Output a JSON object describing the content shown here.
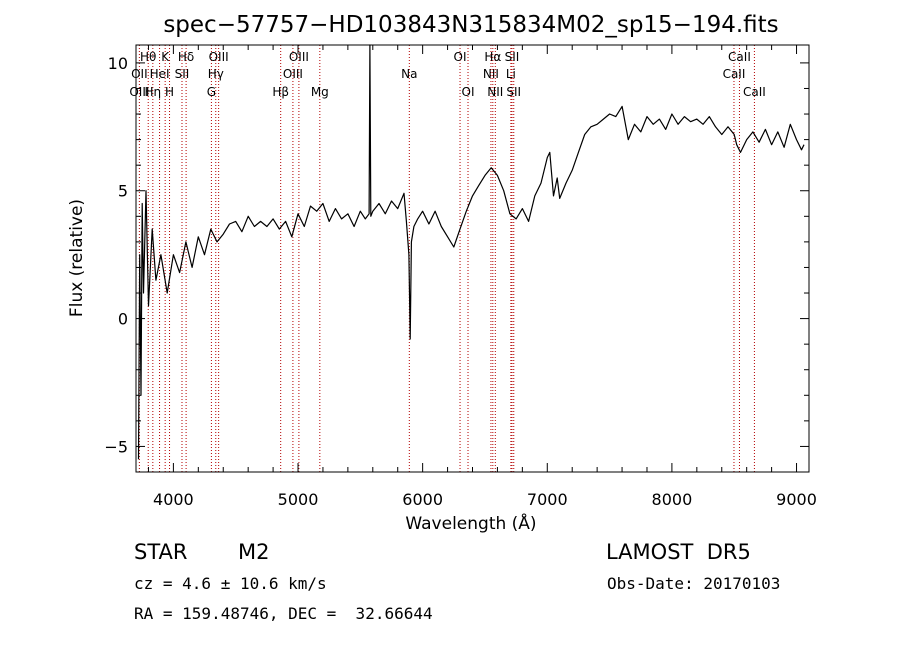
{
  "chart_data": {
    "type": "line",
    "title": "spec−57757−HD103843N315834M02_sp15−194.fits",
    "xlabel": "Wavelength (Å)",
    "ylabel": "Flux (relative)",
    "xlim": [
      3700,
      9100
    ],
    "ylim": [
      -6.0,
      10.7
    ],
    "x_ticks": [
      4000,
      5000,
      6000,
      7000,
      8000,
      9000
    ],
    "y_ticks": [
      -5,
      0,
      5,
      10
    ],
    "x_tick_labels": [
      "4000",
      "5000",
      "6000",
      "7000",
      "8000",
      "9000"
    ],
    "y_tick_labels": [
      "−5",
      "0",
      "5",
      "10"
    ],
    "grid": false,
    "series": [
      {
        "x": [
          3720,
          3730,
          3740,
          3750,
          3760,
          3780,
          3800,
          3830,
          3860,
          3900,
          3950,
          4000,
          4050,
          4100,
          4150,
          4200,
          4250,
          4300,
          4350,
          4400,
          4450,
          4500,
          4550,
          4600,
          4650,
          4700,
          4750,
          4800,
          4850,
          4900,
          4950,
          5000,
          5050,
          5100,
          5150,
          5200,
          5250,
          5300,
          5350,
          5400,
          5450,
          5500,
          5540,
          5570,
          5577,
          5584,
          5600,
          5650,
          5700,
          5750,
          5800,
          5850,
          5870,
          5890,
          5900,
          5910,
          5930,
          5960,
          6000,
          6050,
          6100,
          6150,
          6200,
          6250,
          6300,
          6350,
          6400,
          6450,
          6500,
          6550,
          6600,
          6650,
          6700,
          6750,
          6800,
          6850,
          6900,
          6950,
          7000,
          7020,
          7050,
          7080,
          7100,
          7150,
          7200,
          7250,
          7300,
          7350,
          7400,
          7450,
          7500,
          7550,
          7600,
          7650,
          7700,
          7750,
          7800,
          7850,
          7900,
          7950,
          8000,
          8050,
          8100,
          8150,
          8200,
          8250,
          8300,
          8350,
          8400,
          8450,
          8500,
          8520,
          8550,
          8600,
          8650,
          8700,
          8750,
          8800,
          8850,
          8900,
          8950,
          9000,
          9040,
          9060
        ],
        "y": [
          -5.5,
          2.5,
          -3,
          4.5,
          1,
          5,
          0.5,
          3.5,
          1.5,
          2.5,
          1,
          2.5,
          1.8,
          3,
          2,
          3.2,
          2.5,
          3.5,
          3,
          3.3,
          3.7,
          3.8,
          3.4,
          4,
          3.6,
          3.8,
          3.6,
          3.9,
          3.5,
          3.8,
          3.2,
          4.1,
          3.6,
          4.4,
          4.2,
          4.5,
          3.8,
          4.3,
          3.9,
          4.1,
          3.6,
          4.2,
          3.9,
          4.1,
          10.7,
          4.0,
          4.2,
          4.5,
          4.1,
          4.6,
          4.3,
          4.9,
          3.8,
          2.5,
          -0.8,
          3.0,
          3.6,
          3.9,
          4.2,
          3.7,
          4.2,
          3.6,
          3.2,
          2.8,
          3.5,
          4.2,
          4.8,
          5.2,
          5.6,
          5.9,
          5.6,
          5.0,
          4.1,
          3.9,
          4.3,
          3.8,
          4.8,
          5.3,
          6.3,
          6.5,
          4.8,
          5.5,
          4.7,
          5.3,
          5.8,
          6.5,
          7.2,
          7.5,
          7.6,
          7.8,
          8.0,
          7.9,
          8.3,
          7.0,
          7.6,
          7.3,
          7.9,
          7.6,
          7.8,
          7.4,
          8.0,
          7.6,
          7.9,
          7.7,
          7.8,
          7.6,
          7.9,
          7.5,
          7.2,
          7.5,
          7.2,
          6.8,
          6.5,
          7.0,
          7.3,
          6.9,
          7.4,
          6.8,
          7.3,
          6.7,
          7.6,
          7.0,
          6.6,
          6.8
        ]
      }
    ],
    "annotations": [
      {
        "text": "Hθ",
        "x": 3798
      },
      {
        "text": "K",
        "x": 3934
      },
      {
        "text": "Hδ",
        "x": 4102
      },
      {
        "text": "OIII",
        "x": 4363
      },
      {
        "text": "OIII",
        "x": 5007
      },
      {
        "text": "OI",
        "x": 6300
      },
      {
        "text": "Hα",
        "x": 6563
      },
      {
        "text": "SII",
        "x": 6717
      },
      {
        "text": "CaII",
        "x": 8542
      },
      {
        "text": "OII",
        "x": 3727
      },
      {
        "text": "HeI",
        "x": 3889
      },
      {
        "text": "SII",
        "x": 4069
      },
      {
        "text": "Hγ",
        "x": 4340
      },
      {
        "text": "OIII",
        "x": 4959
      },
      {
        "text": "Na",
        "x": 5893
      },
      {
        "text": "NII",
        "x": 6548
      },
      {
        "text": "Li",
        "x": 6708
      },
      {
        "text": "CaII",
        "x": 8498
      },
      {
        "text": "OIII",
        "x": 3727
      },
      {
        "text": "Hη",
        "x": 3835
      },
      {
        "text": "H",
        "x": 3969
      },
      {
        "text": "G",
        "x": 4305
      },
      {
        "text": "Hβ",
        "x": 4861
      },
      {
        "text": "Mg",
        "x": 5175
      },
      {
        "text": "OI",
        "x": 6364
      },
      {
        "text": "NII",
        "x": 6583
      },
      {
        "text": "SII",
        "x": 6731
      },
      {
        "text": "CaII",
        "x": 8662
      }
    ],
    "line_markers": [
      3727,
      3798,
      3835,
      3889,
      3934,
      3969,
      4069,
      4102,
      4305,
      4340,
      4363,
      4861,
      4959,
      5007,
      5175,
      5893,
      6300,
      6364,
      6548,
      6563,
      6583,
      6708,
      6717,
      6731,
      8498,
      8542,
      8662
    ]
  },
  "info": {
    "object_class": "STAR",
    "subclass": "M2",
    "survey": "LAMOST  DR5",
    "redshift": "cz = 4.6 ± 10.6 km/s",
    "obs_date": "Obs-Date: 20170103",
    "coords": "RA = 159.48746, DEC =  32.66644"
  },
  "colors": {
    "spectrum": "#000000",
    "line_markers": "#b40000",
    "axes": "#000000",
    "background": "#ffffff"
  }
}
